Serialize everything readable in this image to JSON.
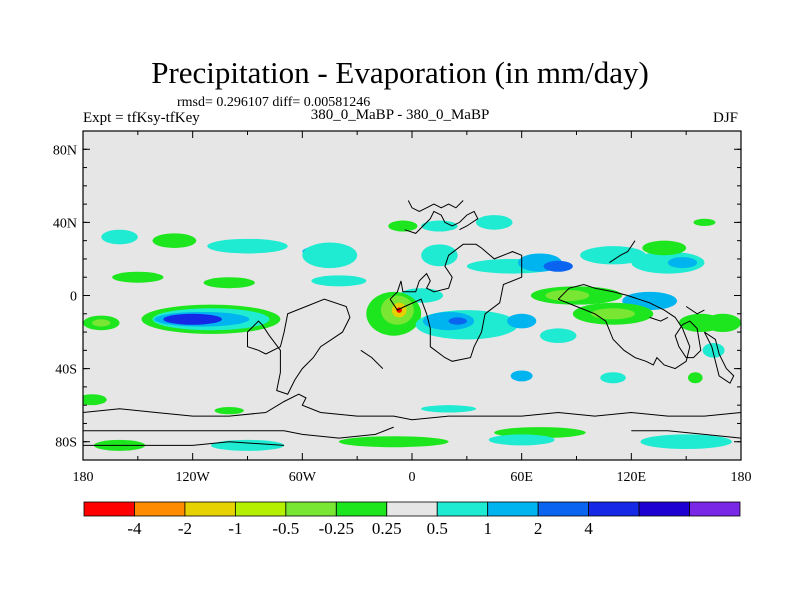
{
  "chart_data": {
    "type": "heatmap",
    "title": "Precipitation - Evaporation (in mm/day)",
    "stats": "rmsd= 0.296107 diff= 0.00581246",
    "experiment_label": "Expt = tfKsy-tfKey",
    "experiment_name": "380_0_MaBP - 380_0_MaBP",
    "season": "DJF",
    "x_axis": {
      "range": [
        -180,
        180
      ],
      "ticks": [
        -180,
        -120,
        -60,
        0,
        60,
        120,
        180
      ],
      "tick_labels": [
        "180",
        "120W",
        "60W",
        "0",
        "60E",
        "120E",
        "180"
      ]
    },
    "y_axis": {
      "range": [
        -90,
        90
      ],
      "ticks": [
        80,
        40,
        0,
        -40,
        -80
      ],
      "tick_labels": [
        "80N",
        "40N",
        "0",
        "40S",
        "80S"
      ]
    },
    "colorbar": {
      "colors": [
        "#ff0000",
        "#ff8c00",
        "#e6d200",
        "#b4f000",
        "#78e632",
        "#1ee61e",
        "#e6e6e6",
        "#1eebd2",
        "#00b4f0",
        "#0a64f0",
        "#1428e6",
        "#1e00d2",
        "#7a28e6"
      ],
      "levels": [
        -4,
        -2,
        -1,
        -0.5,
        -0.25,
        0.25,
        0.5,
        1,
        2,
        4
      ],
      "level_labels": [
        "-4",
        "-2",
        "-1",
        "-0.5",
        "-0.25",
        "0.25",
        "0.5",
        "1",
        "2",
        "4"
      ]
    },
    "anomaly_regions": [
      {
        "lon": -160,
        "lat": 32,
        "rlon": 10,
        "rlat": 4,
        "color": "#1eebd2"
      },
      {
        "lon": -130,
        "lat": 30,
        "rlon": 12,
        "rlat": 4,
        "color": "#1ee61e"
      },
      {
        "lon": -90,
        "lat": 27,
        "rlon": 22,
        "rlat": 4,
        "color": "#1eebd2"
      },
      {
        "lon": -50,
        "lat": 24,
        "rlon": 10,
        "rlat": 3,
        "color": "#00b4f0"
      },
      {
        "lon": -45,
        "lat": 22,
        "rlon": 15,
        "rlat": 7,
        "color": "#1eebd2"
      },
      {
        "lon": -150,
        "lat": 10,
        "rlon": 14,
        "rlat": 3,
        "color": "#1ee61e"
      },
      {
        "lon": -100,
        "lat": 7,
        "rlon": 14,
        "rlat": 3,
        "color": "#1ee61e"
      },
      {
        "lon": -40,
        "lat": 8,
        "rlon": 15,
        "rlat": 3,
        "color": "#1eebd2"
      },
      {
        "lon": -5,
        "lat": 38,
        "rlon": 8,
        "rlat": 3,
        "color": "#1ee61e"
      },
      {
        "lon": 15,
        "lat": 38,
        "rlon": 10,
        "rlat": 3,
        "color": "#1eebd2"
      },
      {
        "lon": 15,
        "lat": 22,
        "rlon": 10,
        "rlat": 6,
        "color": "#1eebd2"
      },
      {
        "lon": 45,
        "lat": 40,
        "rlon": 10,
        "rlat": 4,
        "color": "#1eebd2"
      },
      {
        "lon": 55,
        "lat": 16,
        "rlon": 25,
        "rlat": 4,
        "color": "#1eebd2"
      },
      {
        "lon": 70,
        "lat": 18,
        "rlon": 12,
        "rlat": 5,
        "color": "#00b4f0"
      },
      {
        "lon": 80,
        "lat": 16,
        "rlon": 8,
        "rlat": 3,
        "color": "#0a64f0"
      },
      {
        "lon": 110,
        "lat": 22,
        "rlon": 18,
        "rlat": 5,
        "color": "#1eebd2"
      },
      {
        "lon": 140,
        "lat": 18,
        "rlon": 20,
        "rlat": 6,
        "color": "#1eebd2"
      },
      {
        "lon": 148,
        "lat": 18,
        "rlon": 8,
        "rlat": 3,
        "color": "#00b4f0"
      },
      {
        "lon": 138,
        "lat": 26,
        "rlon": 12,
        "rlat": 4,
        "color": "#1ee61e"
      },
      {
        "lon": 160,
        "lat": 40,
        "rlon": 6,
        "rlat": 2,
        "color": "#1ee61e"
      },
      {
        "lon": 5,
        "lat": 0,
        "rlon": 12,
        "rlat": 4,
        "color": "#1eebd2"
      },
      {
        "lon": 90,
        "lat": 0,
        "rlon": 25,
        "rlat": 5,
        "color": "#1ee61e"
      },
      {
        "lon": 85,
        "lat": 0,
        "rlon": 12,
        "rlat": 3,
        "color": "#78e632"
      },
      {
        "lon": 130,
        "lat": -3,
        "rlon": 15,
        "rlat": 5,
        "color": "#00b4f0"
      },
      {
        "lon": -110,
        "lat": -13,
        "rlon": 38,
        "rlat": 8,
        "color": "#1ee61e"
      },
      {
        "lon": -110,
        "lat": -13,
        "rlon": 32,
        "rlat": 6,
        "color": "#1eebd2"
      },
      {
        "lon": -115,
        "lat": -13,
        "rlon": 26,
        "rlat": 4,
        "color": "#00b4f0"
      },
      {
        "lon": -120,
        "lat": -13,
        "rlon": 16,
        "rlat": 3,
        "color": "#1428e6"
      },
      {
        "lon": -170,
        "lat": -15,
        "rlon": 10,
        "rlat": 4,
        "color": "#1ee61e"
      },
      {
        "lon": -170,
        "lat": -15,
        "rlon": 5,
        "rlat": 2,
        "color": "#78e632"
      },
      {
        "lon": -10,
        "lat": -10,
        "rlon": 15,
        "rlat": 12,
        "color": "#1ee61e"
      },
      {
        "lon": -8,
        "lat": -8,
        "rlon": 9,
        "rlat": 8,
        "color": "#78e632"
      },
      {
        "lon": -7,
        "lat": -8,
        "rlon": 4,
        "rlat": 4,
        "color": "#e6d200"
      },
      {
        "lon": -7,
        "lat": -8,
        "rlon": 1.5,
        "rlat": 1.5,
        "color": "#ff0000"
      },
      {
        "lon": 30,
        "lat": -16,
        "rlon": 28,
        "rlat": 8,
        "color": "#1eebd2"
      },
      {
        "lon": 20,
        "lat": -14,
        "rlon": 14,
        "rlat": 5,
        "color": "#00b4f0"
      },
      {
        "lon": 25,
        "lat": -14,
        "rlon": 5,
        "rlat": 2,
        "color": "#0a64f0"
      },
      {
        "lon": 60,
        "lat": -14,
        "rlon": 8,
        "rlat": 4,
        "color": "#00b4f0"
      },
      {
        "lon": 80,
        "lat": -22,
        "rlon": 10,
        "rlat": 4,
        "color": "#1eebd2"
      },
      {
        "lon": 110,
        "lat": -10,
        "rlon": 22,
        "rlat": 6,
        "color": "#1ee61e"
      },
      {
        "lon": 110,
        "lat": -10,
        "rlon": 12,
        "rlat": 3,
        "color": "#78e632"
      },
      {
        "lon": 158,
        "lat": -15,
        "rlon": 12,
        "rlat": 5,
        "color": "#1ee61e"
      },
      {
        "lon": 170,
        "lat": -15,
        "rlon": 10,
        "rlat": 5,
        "color": "#1ee61e"
      },
      {
        "lon": 165,
        "lat": -30,
        "rlon": 6,
        "rlat": 4,
        "color": "#1eebd2"
      },
      {
        "lon": 60,
        "lat": -44,
        "rlon": 6,
        "rlat": 3,
        "color": "#00b4f0"
      },
      {
        "lon": 110,
        "lat": -45,
        "rlon": 7,
        "rlat": 3,
        "color": "#1eebd2"
      },
      {
        "lon": 155,
        "lat": -45,
        "rlon": 4,
        "rlat": 3,
        "color": "#1ee61e"
      },
      {
        "lon": -175,
        "lat": -57,
        "rlon": 8,
        "rlat": 3,
        "color": "#1ee61e"
      },
      {
        "lon": -100,
        "lat": -63,
        "rlon": 8,
        "rlat": 2,
        "color": "#1ee61e"
      },
      {
        "lon": 20,
        "lat": -62,
        "rlon": 15,
        "rlat": 2,
        "color": "#1eebd2"
      },
      {
        "lon": 70,
        "lat": -75,
        "rlon": 25,
        "rlat": 3,
        "color": "#1ee61e"
      },
      {
        "lon": 60,
        "lat": -79,
        "rlon": 18,
        "rlat": 3,
        "color": "#1eebd2"
      },
      {
        "lon": -10,
        "lat": -80,
        "rlon": 30,
        "rlat": 3,
        "color": "#1ee61e"
      },
      {
        "lon": -160,
        "lat": -82,
        "rlon": 14,
        "rlat": 3,
        "color": "#1ee61e"
      },
      {
        "lon": -90,
        "lat": -82,
        "rlon": 20,
        "rlat": 3,
        "color": "#1eebd2"
      },
      {
        "lon": 150,
        "lat": -80,
        "rlon": 25,
        "rlat": 4,
        "color": "#1eebd2"
      }
    ],
    "coastlines": [
      [
        [
          -12,
          -2
        ],
        [
          -8,
          2
        ],
        [
          -6,
          8
        ],
        [
          -5,
          2
        ],
        [
          2,
          2
        ],
        [
          4,
          8
        ],
        [
          8,
          12
        ],
        [
          10,
          8
        ],
        [
          8,
          4
        ],
        [
          12,
          2
        ],
        [
          20,
          4
        ],
        [
          22,
          10
        ],
        [
          18,
          16
        ],
        [
          20,
          22
        ],
        [
          28,
          28
        ],
        [
          35,
          28
        ],
        [
          38,
          26
        ],
        [
          45,
          20
        ],
        [
          55,
          24
        ],
        [
          60,
          22
        ],
        [
          60,
          10
        ],
        [
          50,
          6
        ],
        [
          48,
          -4
        ],
        [
          40,
          -10
        ],
        [
          38,
          -20
        ],
        [
          34,
          -28
        ],
        [
          32,
          -34
        ],
        [
          22,
          -36
        ],
        [
          18,
          -34
        ],
        [
          10,
          -28
        ],
        [
          10,
          -18
        ],
        [
          8,
          -10
        ],
        [
          5,
          -2
        ],
        [
          -4,
          -6
        ],
        [
          -8,
          -8
        ],
        [
          -12,
          -2
        ]
      ],
      [
        [
          -80,
          -32
        ],
        [
          -72,
          -28
        ],
        [
          -70,
          -20
        ],
        [
          -68,
          -10
        ],
        [
          -58,
          -6
        ],
        [
          -48,
          -2
        ],
        [
          -36,
          -6
        ],
        [
          -34,
          -12
        ],
        [
          -38,
          -20
        ],
        [
          -44,
          -24
        ],
        [
          -50,
          -28
        ],
        [
          -54,
          -34
        ],
        [
          -60,
          -40
        ],
        [
          -64,
          -46
        ],
        [
          -68,
          -54
        ],
        [
          -74,
          -52
        ],
        [
          -72,
          -42
        ],
        [
          -72,
          -30
        ],
        [
          -78,
          -22
        ],
        [
          -82,
          -16
        ],
        [
          -84,
          -14
        ],
        [
          -90,
          -20
        ],
        [
          -90,
          -28
        ],
        [
          -84,
          -30
        ],
        [
          -80,
          -32
        ]
      ],
      [
        [
          80,
          -2
        ],
        [
          90,
          -6
        ],
        [
          100,
          -10
        ],
        [
          106,
          -14
        ],
        [
          110,
          -24
        ],
        [
          116,
          -30
        ],
        [
          122,
          -34
        ],
        [
          128,
          -36
        ],
        [
          132,
          -38
        ],
        [
          134,
          -34
        ],
        [
          138,
          -38
        ],
        [
          144,
          -40
        ],
        [
          150,
          -36
        ],
        [
          152,
          -28
        ],
        [
          148,
          -18
        ],
        [
          144,
          -12
        ],
        [
          138,
          -8
        ],
        [
          130,
          -4
        ],
        [
          124,
          -2
        ],
        [
          118,
          0
        ],
        [
          110,
          2
        ],
        [
          100,
          4
        ],
        [
          94,
          6
        ],
        [
          86,
          4
        ],
        [
          80,
          -2
        ]
      ],
      [
        [
          148,
          -16
        ],
        [
          152,
          -14
        ],
        [
          156,
          -18
        ],
        [
          158,
          -30
        ],
        [
          154,
          -34
        ],
        [
          150,
          -34
        ],
        [
          146,
          -28
        ],
        [
          144,
          -22
        ],
        [
          148,
          -16
        ]
      ],
      [
        [
          160,
          -20
        ],
        [
          166,
          -24
        ],
        [
          168,
          -32
        ],
        [
          172,
          -40
        ],
        [
          176,
          -44
        ],
        [
          174,
          -48
        ],
        [
          168,
          -44
        ],
        [
          166,
          -36
        ],
        [
          164,
          -28
        ],
        [
          160,
          -20
        ]
      ],
      [
        [
          -180,
          -64
        ],
        [
          -160,
          -62
        ],
        [
          -140,
          -64
        ],
        [
          -120,
          -66
        ],
        [
          -100,
          -66
        ],
        [
          -80,
          -64
        ],
        [
          -70,
          -58
        ],
        [
          -62,
          -54
        ],
        [
          -58,
          -56
        ],
        [
          -60,
          -60
        ],
        [
          -50,
          -64
        ],
        [
          -30,
          -66
        ],
        [
          -10,
          -66
        ],
        [
          0,
          -68
        ],
        [
          20,
          -66
        ],
        [
          40,
          -66
        ],
        [
          60,
          -66
        ],
        [
          80,
          -64
        ],
        [
          100,
          -66
        ],
        [
          120,
          -64
        ],
        [
          140,
          -66
        ],
        [
          160,
          -66
        ],
        [
          180,
          -64
        ]
      ],
      [
        [
          -180,
          -74
        ],
        [
          -150,
          -74
        ],
        [
          -130,
          -74
        ],
        [
          -110,
          -74
        ],
        [
          -90,
          -74
        ],
        [
          -70,
          -74
        ],
        [
          -60,
          -76
        ],
        [
          -40,
          -78
        ],
        [
          -20,
          -76
        ],
        [
          -10,
          -72
        ]
      ],
      [
        [
          -180,
          -82
        ],
        [
          -120,
          -82
        ],
        [
          -100,
          -80
        ],
        [
          -70,
          -82
        ]
      ],
      [
        [
          120,
          -74
        ],
        [
          140,
          -74
        ],
        [
          160,
          -76
        ],
        [
          180,
          -78
        ]
      ],
      [
        [
          -4,
          36
        ],
        [
          2,
          34
        ],
        [
          6,
          38
        ],
        [
          10,
          42
        ],
        [
          12,
          46
        ],
        [
          16,
          44
        ],
        [
          18,
          40
        ],
        [
          22,
          38
        ],
        [
          26,
          40
        ],
        [
          30,
          44
        ],
        [
          34,
          46
        ],
        [
          36,
          42
        ],
        [
          30,
          38
        ],
        [
          26,
          36
        ]
      ],
      [
        [
          -2,
          52
        ],
        [
          0,
          48
        ],
        [
          4,
          46
        ],
        [
          8,
          48
        ],
        [
          12,
          50
        ],
        [
          16,
          48
        ],
        [
          20,
          50
        ],
        [
          24,
          48
        ],
        [
          28,
          52
        ]
      ],
      [
        [
          -28,
          -30
        ],
        [
          -22,
          -34
        ],
        [
          -16,
          -40
        ]
      ],
      [
        [
          108,
          18
        ],
        [
          114,
          22
        ],
        [
          118,
          24
        ],
        [
          122,
          30
        ]
      ],
      [
        [
          150,
          -6
        ],
        [
          156,
          -10
        ],
        [
          160,
          -8
        ]
      ],
      [
        [
          130,
          -12
        ],
        [
          136,
          -14
        ],
        [
          140,
          -12
        ]
      ]
    ]
  }
}
